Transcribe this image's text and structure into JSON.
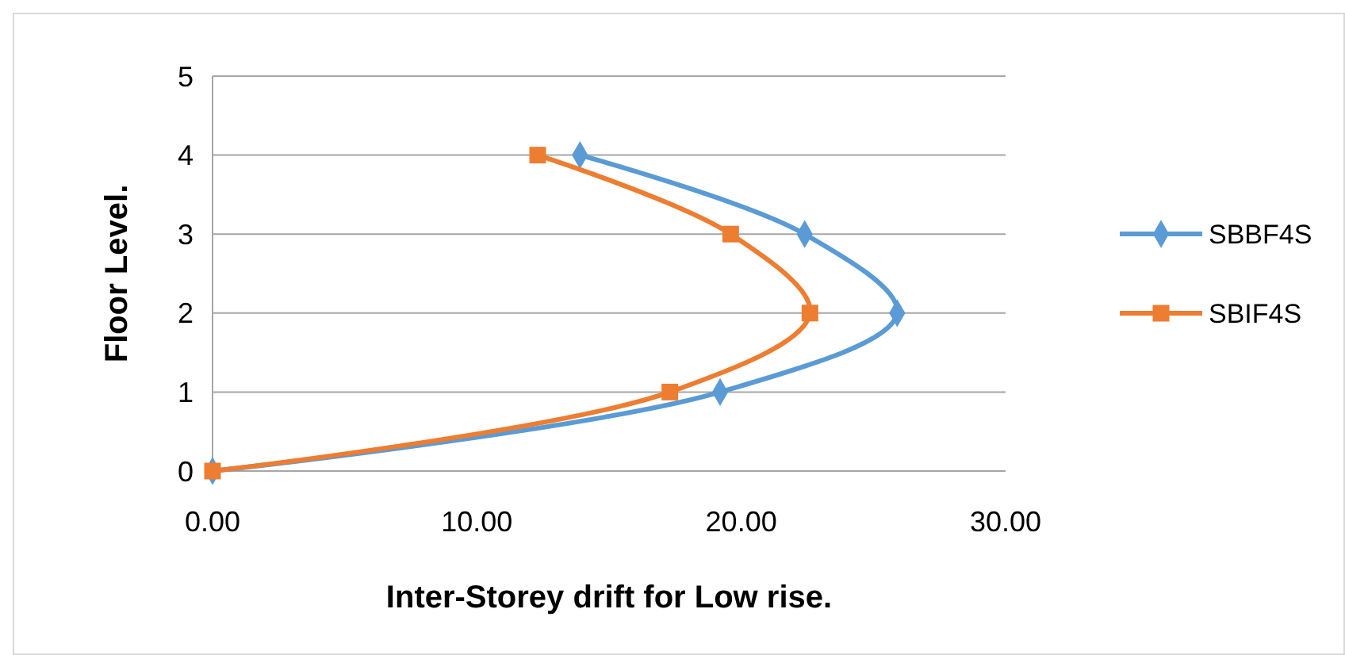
{
  "chart_data": {
    "type": "line",
    "xlabel": "Inter-Storey drift for Low rise.",
    "ylabel": "Floor Level.",
    "xlim": [
      0,
      30
    ],
    "xticks": [
      {
        "value": 0,
        "label": "0.00"
      },
      {
        "value": 10,
        "label": "10.00"
      },
      {
        "value": 20,
        "label": "20.00"
      },
      {
        "value": 30,
        "label": "30.00"
      }
    ],
    "ylim": [
      0,
      5
    ],
    "yticks": [
      0,
      1,
      2,
      3,
      4,
      5
    ],
    "grid": "y",
    "legend": "right",
    "line_style": "solid",
    "series": [
      {
        "name": "SBBF4S",
        "color": "#5b9bd5",
        "marker": "diamond",
        "x": [
          0,
          19.2,
          25.9,
          22.4,
          13.9
        ],
        "values": [
          0,
          1,
          2,
          3,
          4
        ]
      },
      {
        "name": "SBIF4S",
        "color": "#ed7d31",
        "marker": "square",
        "x": [
          0,
          17.3,
          22.6,
          19.6,
          12.3
        ],
        "values": [
          0,
          1,
          2,
          3,
          4
        ]
      }
    ]
  }
}
